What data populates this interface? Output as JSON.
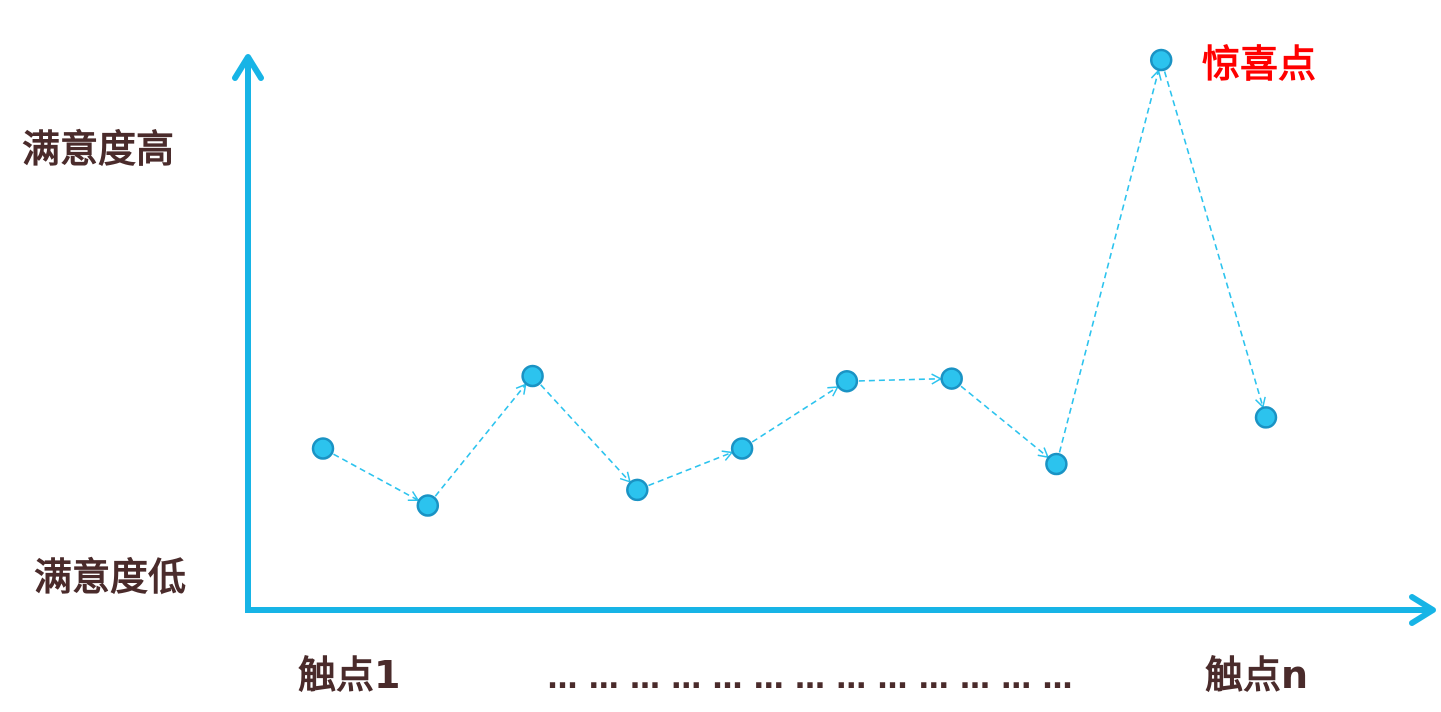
{
  "chart_data": {
    "type": "line",
    "title": "",
    "ylabel_high": "满意度高",
    "ylabel_low": "满意度低",
    "x_start_label": "触点1",
    "x_ellipsis": "…………………………………",
    "x_end_label": "触点n",
    "annotation": "惊喜点",
    "values": [
      0.25,
      0.14,
      0.39,
      0.17,
      0.25,
      0.38,
      0.385,
      0.22,
      1.0,
      0.31
    ],
    "ylim": [
      0,
      1
    ],
    "grid": false,
    "colors": {
      "axis": "#17B4E6",
      "point_fill": "#2CC3EE",
      "point_stroke": "#1A93C4",
      "line": "#2CC3EE",
      "axis_label": "#4A2B2B",
      "annotation": "#FF0000"
    }
  }
}
